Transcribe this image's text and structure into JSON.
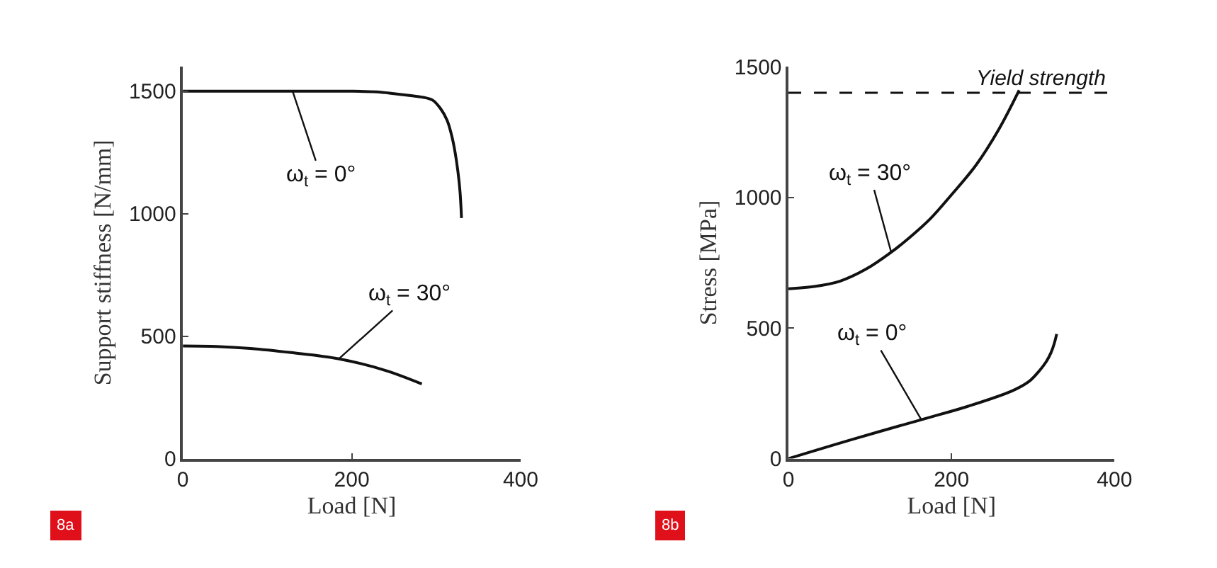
{
  "chart_data": [
    {
      "type": "line",
      "xlabel": "Load [N]",
      "ylabel": "Support stiffness [N/mm]",
      "xlim": [
        0,
        400
      ],
      "xticks": [
        0,
        200,
        400
      ],
      "ylim": [
        0,
        1600
      ],
      "yticks": [
        0,
        500,
        1000,
        1500
      ],
      "marker": "none",
      "line_style": "solid",
      "series": [
        {
          "color": "#111111",
          "x": [
            0,
            100,
            200,
            230,
            250,
            270,
            285,
            296,
            305,
            313,
            319,
            324,
            328,
            330
          ],
          "values": [
            1500,
            1500,
            1500,
            1497,
            1490,
            1482,
            1475,
            1463,
            1430,
            1381,
            1310,
            1216,
            1100,
            982
          ]
        },
        {
          "color": "#111111",
          "x": [
            0,
            40,
            80,
            128,
            184,
            240,
            283
          ],
          "values": [
            460,
            458,
            450,
            433,
            408,
            360,
            305
          ]
        }
      ],
      "annotations": [
        {
          "text": "ω$_{t}$ = 0°",
          "x": 130,
          "y": 1500
        },
        {
          "text": "ω$_{t}$ = 30°",
          "x": 185,
          "y": 408
        },
        "8a"
      ]
    },
    {
      "type": "line",
      "xlabel": "Load [N]",
      "ylabel": "Stress [MPa]",
      "xlim": [
        0,
        400
      ],
      "xticks": [
        0,
        200,
        400
      ],
      "ylim": [
        0,
        1500
      ],
      "yticks": [
        0,
        500,
        1000,
        1500
      ],
      "marker": "none",
      "line_style": "solid",
      "ref_lines": [
        {
          "axis": "y",
          "value": 1400,
          "label": "Yield strength",
          "line_style": "dashed",
          "color": "#111111"
        }
      ],
      "series": [
        {
          "color": "#111111",
          "x": [
            0,
            30,
            63,
            95,
            126,
            150,
            174,
            200,
            230,
            258,
            283
          ],
          "values": [
            650,
            658,
            679,
            725,
            790,
            850,
            918,
            1010,
            1123,
            1260,
            1410
          ]
        },
        {
          "color": "#111111",
          "x": [
            0,
            80,
            163,
            220,
            275,
            295,
            308,
            316,
            322,
            326,
            329
          ],
          "values": [
            0,
            75,
            149,
            200,
            260,
            295,
            337,
            370,
            405,
            440,
            477
          ]
        }
      ],
      "annotations": [
        {
          "text": "ω$_{t}$ = 30°",
          "x": 126,
          "y": 790
        },
        {
          "text": "ω$_{t}$ = 0°",
          "x": 163,
          "y": 149
        },
        "8b"
      ]
    }
  ]
}
